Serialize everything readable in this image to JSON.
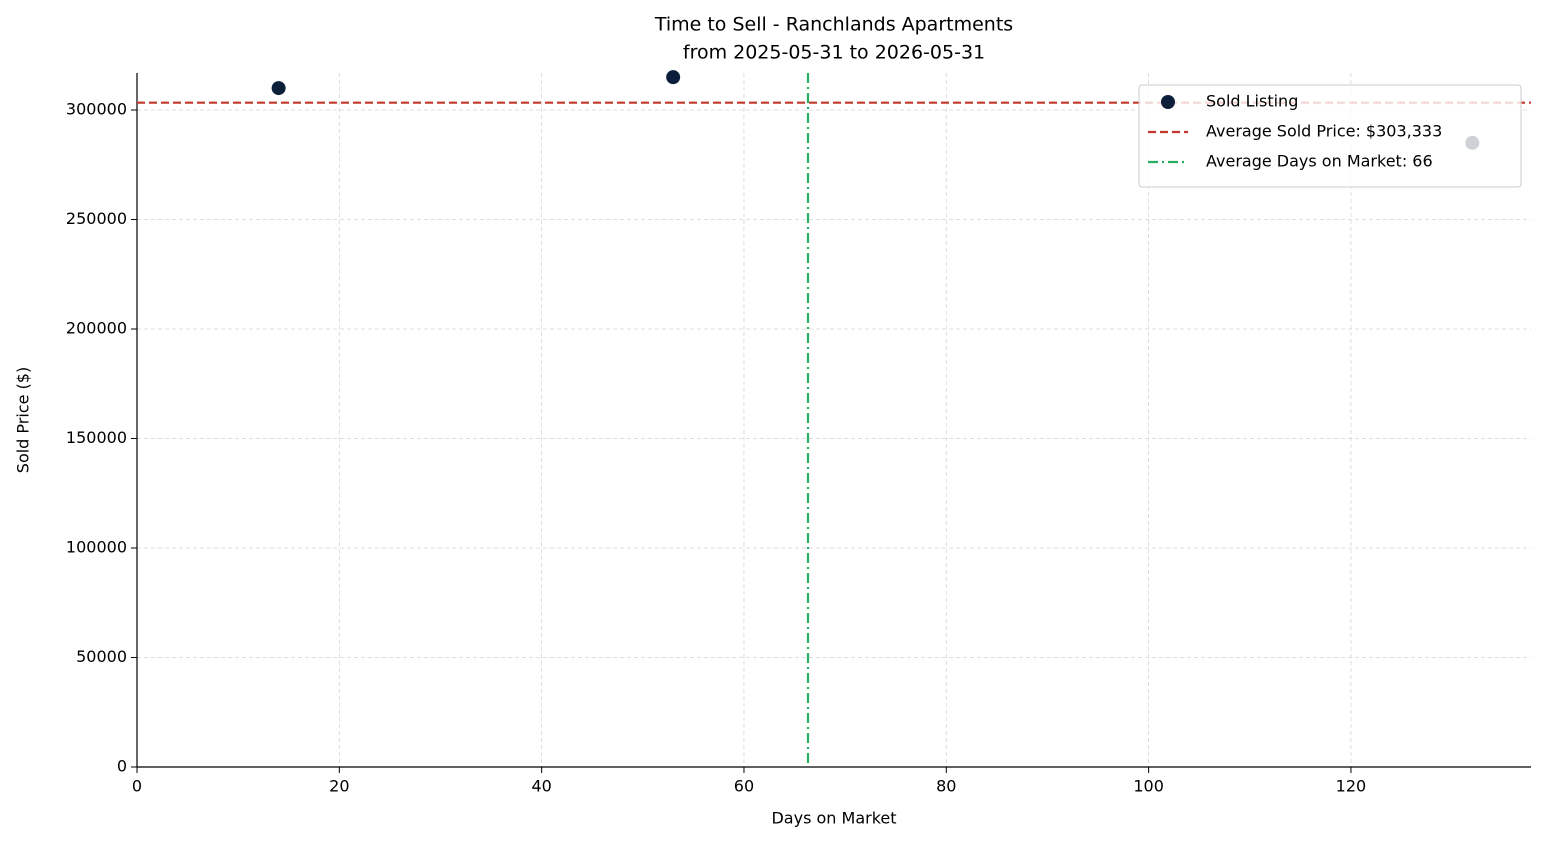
{
  "chart_data": {
    "type": "scatter",
    "title": "Time to Sell - Ranchlands Apartments",
    "subtitle": "from 2025-05-31 to 2026-05-31",
    "x_label": "Days on Market",
    "y_label": "Sold Price ($)",
    "series": [
      {
        "name": "Sold Listing",
        "color": "#0b1f3a",
        "x": [
          14,
          53,
          132
        ],
        "values": [
          310000,
          315000,
          285000
        ]
      }
    ],
    "hlines": [
      {
        "name": "Average Sold Price: $303,333",
        "value": 303333,
        "color": "#c0392b",
        "style": "dashed"
      }
    ],
    "vlines": [
      {
        "name": "Average Days on Market: 66",
        "value": 66.33,
        "color": "#27ae60",
        "style": "dashdot"
      }
    ],
    "xlim": [
      0,
      137.8
    ],
    "xticks": [
      0,
      20,
      40,
      60,
      80,
      100,
      120
    ],
    "ylim": [
      0,
      316900
    ],
    "yticks": [
      0,
      50000,
      100000,
      150000,
      200000,
      250000,
      300000
    ],
    "grid": true,
    "legend": "upper right"
  }
}
